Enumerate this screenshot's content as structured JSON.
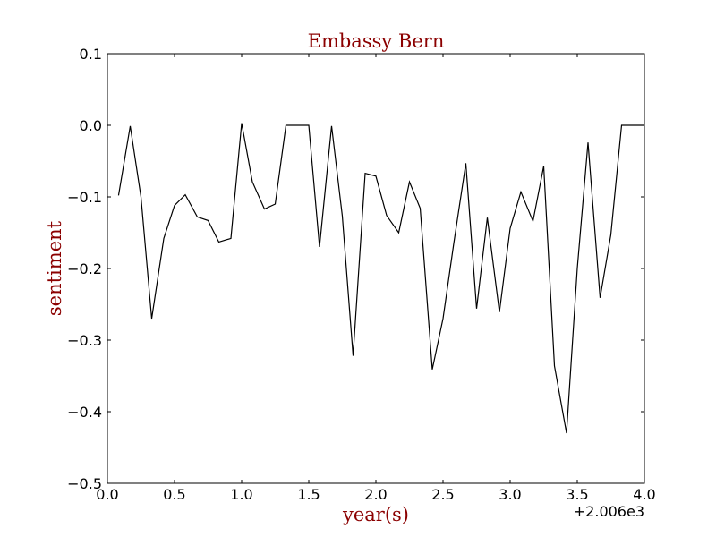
{
  "chart_data": {
    "type": "line",
    "title": "Embassy Bern",
    "xlabel": "year(s)",
    "ylabel": "sentiment",
    "x_offset_label": "+2.006e3",
    "title_color": "#8b0000",
    "label_color": "#8b0000",
    "line_color": "#000000",
    "xlim": [
      0.0,
      4.0
    ],
    "ylim": [
      -0.5,
      0.1
    ],
    "x_ticks": [
      0.0,
      0.5,
      1.0,
      1.5,
      2.0,
      2.5,
      3.0,
      3.5,
      4.0
    ],
    "x_tick_labels": [
      "0.0",
      "0.5",
      "1.0",
      "1.5",
      "2.0",
      "2.5",
      "3.0",
      "3.5",
      "4.0"
    ],
    "y_ticks": [
      0.1,
      0.0,
      -0.1,
      -0.2,
      -0.3,
      -0.4,
      -0.5
    ],
    "y_tick_labels": [
      "0.1",
      "0.0",
      "−0.1",
      "−0.2",
      "−0.3",
      "−0.4",
      "−0.5"
    ],
    "grid": false,
    "legend": "none",
    "series": [
      {
        "x": [
          0.083,
          0.17,
          0.25,
          0.33,
          0.42,
          0.5,
          0.58,
          0.67,
          0.75,
          0.83,
          0.92,
          1.0,
          1.08,
          1.17,
          1.25,
          1.33,
          1.42,
          1.5,
          1.58,
          1.67,
          1.75,
          1.83,
          1.92,
          2.0,
          2.08,
          2.17,
          2.25,
          2.33,
          2.42,
          2.5,
          2.58,
          2.67,
          2.75,
          2.83,
          2.92,
          3.0,
          3.08,
          3.17,
          3.25,
          3.33,
          3.42,
          3.5,
          3.58,
          3.67,
          3.75,
          3.83,
          3.92,
          4.0
        ],
        "y": [
          -0.098,
          -0.001,
          -0.1,
          -0.27,
          -0.158,
          -0.112,
          -0.097,
          -0.128,
          -0.133,
          -0.163,
          -0.158,
          0.003,
          -0.079,
          -0.117,
          -0.11,
          0.0,
          0.0,
          0.0,
          -0.17,
          -0.001,
          -0.127,
          -0.322,
          -0.067,
          -0.071,
          -0.126,
          -0.15,
          -0.079,
          -0.116,
          -0.341,
          -0.27,
          -0.165,
          -0.053,
          -0.256,
          -0.129,
          -0.261,
          -0.144,
          -0.093,
          -0.134,
          -0.057,
          -0.336,
          -0.43,
          -0.2,
          -0.024,
          -0.241,
          -0.153,
          0.0,
          0.0,
          0.0
        ]
      }
    ]
  }
}
